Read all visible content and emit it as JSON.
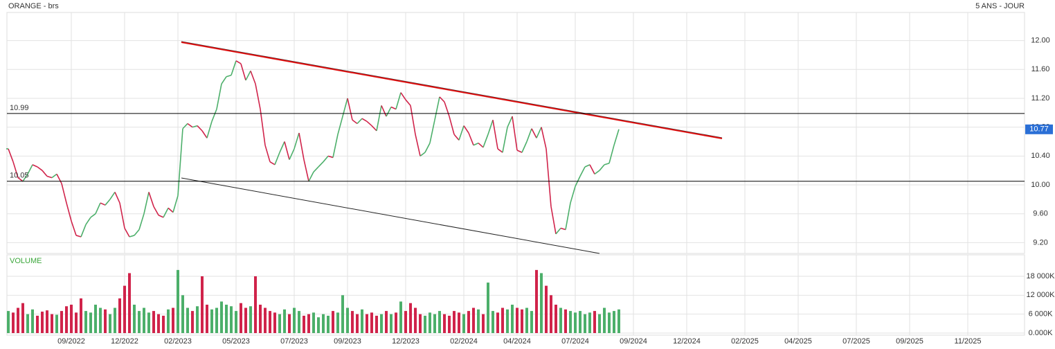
{
  "chart_data": [
    {
      "type": "line",
      "title": "ORANGE - brs",
      "subtitle": "5 ANS - JOUR",
      "categories": [
        null,
        null,
        null,
        null,
        null,
        null,
        null,
        null,
        null,
        null,
        null,
        null,
        null,
        "09/2022",
        null,
        null,
        null,
        null,
        null,
        null,
        null,
        null,
        null,
        null,
        "12/2022",
        null,
        null,
        null,
        null,
        null,
        null,
        null,
        null,
        null,
        null,
        "02/2023",
        null,
        null,
        null,
        null,
        null,
        null,
        null,
        null,
        null,
        null,
        null,
        "05/2023",
        null,
        null,
        null,
        null,
        null,
        null,
        null,
        null,
        null,
        null,
        null,
        "07/2023",
        null,
        null,
        null,
        null,
        null,
        null,
        null,
        null,
        null,
        null,
        "09/2023",
        null,
        null,
        null,
        null,
        null,
        null,
        null,
        null,
        null,
        null,
        null,
        "12/2023",
        null,
        null,
        null,
        null,
        null,
        null,
        null,
        null,
        null,
        null,
        null,
        "02/2024",
        null,
        null,
        null,
        null,
        null,
        null,
        null,
        null,
        null,
        null,
        "04/2024",
        null,
        null,
        null,
        null,
        null,
        null,
        null,
        null,
        null,
        null,
        null,
        "07/2024",
        null,
        null,
        null,
        null,
        null,
        null,
        null,
        null,
        null,
        null,
        null,
        "09/2024",
        null,
        null,
        null,
        null,
        null,
        null,
        null,
        null,
        null,
        null,
        "12/2024",
        null,
        null,
        null,
        null,
        null,
        null,
        null,
        null,
        null,
        null,
        null,
        "02/2025",
        null,
        null,
        null,
        null,
        null,
        null,
        null,
        null,
        null,
        null,
        "04/2025",
        null,
        null,
        null,
        null,
        null,
        null,
        null,
        null,
        null,
        null,
        null,
        "07/2025",
        null,
        null,
        null,
        null,
        null,
        null,
        null,
        null,
        null,
        null,
        "09/2025",
        null,
        null,
        null,
        null,
        null,
        null,
        null,
        null,
        null,
        null,
        null,
        "11/2025",
        null,
        null,
        null,
        null,
        null,
        null,
        null,
        null,
        null,
        null,
        null
      ],
      "values": [
        10.5,
        10.32,
        10.1,
        10.05,
        10.15,
        10.28,
        10.25,
        10.2,
        10.12,
        10.1,
        10.15,
        10.02,
        9.75,
        9.5,
        9.3,
        9.28,
        9.45,
        9.55,
        9.6,
        9.75,
        9.72,
        9.8,
        9.9,
        9.75,
        9.4,
        9.28,
        9.3,
        9.38,
        9.6,
        9.9,
        9.7,
        9.58,
        9.55,
        9.68,
        9.62,
        9.85,
        10.78,
        10.85,
        10.8,
        10.82,
        10.75,
        10.65,
        10.88,
        11.05,
        11.4,
        11.5,
        11.52,
        11.72,
        11.68,
        11.45,
        11.58,
        11.4,
        11.05,
        10.55,
        10.32,
        10.28,
        10.45,
        10.6,
        10.35,
        10.5,
        10.72,
        10.35,
        10.05,
        10.18,
        10.25,
        10.32,
        10.4,
        10.38,
        10.7,
        10.95,
        11.2,
        10.9,
        10.85,
        10.92,
        10.88,
        10.82,
        10.75,
        11.1,
        10.95,
        11.08,
        11.05,
        11.28,
        11.18,
        11.1,
        10.7,
        10.4,
        10.45,
        10.58,
        10.9,
        11.22,
        11.15,
        10.95,
        10.7,
        10.62,
        10.82,
        10.72,
        10.55,
        10.58,
        10.52,
        10.7,
        10.9,
        10.5,
        10.45,
        10.8,
        10.95,
        10.48,
        10.45,
        10.6,
        10.78,
        10.65,
        10.8,
        10.5,
        9.7,
        9.32,
        9.4,
        9.38,
        9.75,
        9.98,
        10.12,
        10.25,
        10.28,
        10.15,
        10.2,
        10.28,
        10.3,
        10.55,
        10.77,
        null,
        null,
        null,
        null,
        null,
        null,
        null,
        null,
        null,
        null,
        null,
        null,
        null,
        null,
        null,
        null,
        null,
        null,
        null,
        null,
        null,
        null,
        null,
        null,
        null,
        null,
        null,
        null,
        null,
        null,
        null,
        null,
        null,
        null,
        null,
        null,
        null,
        null,
        null,
        null,
        null,
        null,
        null,
        null,
        null,
        null,
        null,
        null,
        null,
        null,
        null,
        null,
        null,
        null,
        null,
        null,
        null,
        null,
        null,
        null,
        null,
        null,
        null,
        null,
        null,
        null,
        null,
        null,
        null,
        null,
        null,
        null,
        null,
        null,
        null,
        null,
        null,
        null,
        null,
        null,
        null,
        null,
        null
      ],
      "up_color": "#4caf6a",
      "down_color": "#d0234a",
      "ylim": [
        9.05,
        12.39
      ],
      "yticks": [
        {
          "value": 9.2,
          "label": "9.20"
        },
        {
          "value": 9.6,
          "label": "9.60"
        },
        {
          "value": 10,
          "label": "10.00"
        },
        {
          "value": 10.4,
          "label": "10.40"
        },
        {
          "value": 10.8,
          "label": "10.80"
        },
        {
          "value": 11.2,
          "label": "11.20"
        },
        {
          "value": 11.6,
          "label": "11.60"
        },
        {
          "value": 12,
          "label": "12.00"
        }
      ],
      "reference_lines": [
        10.99,
        10.05
      ],
      "last_price": 10.77,
      "last_price_color": "#2a6fd6",
      "grid": true
    },
    {
      "type": "bar",
      "title": "VOLUME",
      "values": [
        7000,
        6500,
        8000,
        9500,
        6000,
        7500,
        5500,
        6800,
        7200,
        6000,
        5800,
        7000,
        8500,
        9000,
        6500,
        11000,
        7000,
        6500,
        9000,
        8000,
        7500,
        6000,
        8000,
        11000,
        15000,
        19000,
        9000,
        7000,
        8000,
        6500,
        7000,
        6000,
        5500,
        7500,
        8000,
        20000,
        12000,
        8000,
        7000,
        8500,
        18000,
        9000,
        7500,
        8000,
        10000,
        9000,
        8500,
        7000,
        9500,
        8000,
        8500,
        18000,
        9000,
        8000,
        7000,
        6500,
        6000,
        7500,
        6000,
        8000,
        7000,
        5500,
        6000,
        6500,
        5000,
        6000,
        5500,
        7000,
        6500,
        12000,
        8000,
        7000,
        6000,
        7500,
        6000,
        6500,
        5500,
        6000,
        7000,
        6000,
        6500,
        10000,
        7000,
        9500,
        8000,
        6000,
        5500,
        6500,
        6000,
        7000,
        6000,
        5500,
        7000,
        6500,
        6000,
        7000,
        8000,
        7500,
        6000,
        16000,
        7000,
        6500,
        8000,
        7500,
        9000,
        8000,
        7500,
        8000,
        7000,
        20000,
        19000,
        15000,
        12000,
        9000,
        8000,
        7500,
        7000,
        6500,
        7000,
        6000,
        6500,
        7000,
        6000,
        8000,
        6500,
        7000,
        7500,
        null,
        null,
        null,
        null,
        null,
        null,
        null,
        null,
        null,
        null,
        null,
        null,
        null,
        null,
        null,
        null,
        null,
        null,
        null,
        null,
        null,
        null,
        null,
        null,
        null,
        null,
        null,
        null,
        null,
        null,
        null,
        null,
        null,
        null,
        null,
        null,
        null,
        null,
        null,
        null,
        null,
        null,
        null,
        null,
        null,
        null,
        null,
        null,
        null,
        null,
        null,
        null,
        null,
        null,
        null,
        null,
        null,
        null,
        null,
        null,
        null,
        null,
        null,
        null,
        null,
        null,
        null,
        null,
        null,
        null,
        null,
        null,
        null,
        null,
        null,
        null,
        null,
        null,
        null,
        null,
        null,
        null,
        null
      ],
      "ylim": [
        0,
        24800
      ],
      "yticks": [
        {
          "value": 0,
          "label": "0.000K"
        },
        {
          "value": 6000,
          "label": "6 000K"
        },
        {
          "value": 12000,
          "label": "12 000K"
        },
        {
          "value": 18000,
          "label": "18 000K"
        }
      ],
      "title_color": "#3aa63a",
      "grid": true
    }
  ]
}
